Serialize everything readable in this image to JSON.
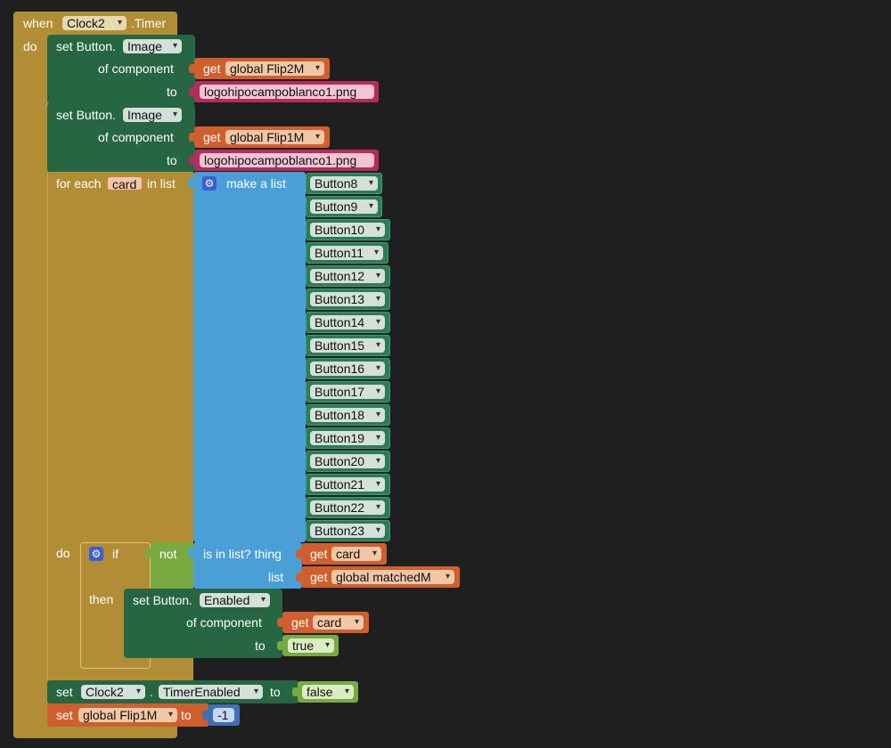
{
  "event": {
    "when": "when",
    "component": "Clock2",
    "event_name": ".Timer",
    "do": "do"
  },
  "set1": {
    "set": "set Button.",
    "property": "Image",
    "of_component": "of component",
    "to": "to",
    "get": "get",
    "var": "global Flip2M",
    "text": "logohipocampoblanco1.png"
  },
  "set2": {
    "set": "set Button.",
    "property": "Image",
    "of_component": "of component",
    "to": "to",
    "get": "get",
    "var": "global Flip1M",
    "text": "logohipocampoblanco1.png"
  },
  "foreach": {
    "label": "for each",
    "var": "card",
    "in_list": "in list",
    "make_list": "make a list",
    "do": "do"
  },
  "buttons": [
    "Button8",
    "Button9",
    "Button10",
    "Button11",
    "Button12",
    "Button13",
    "Button14",
    "Button15",
    "Button16",
    "Button17",
    "Button18",
    "Button19",
    "Button20",
    "Button21",
    "Button22",
    "Button23"
  ],
  "ifblock": {
    "if": "if",
    "not": "not",
    "is_in_list": "is in list? thing",
    "list": "list",
    "get": "get",
    "thing_var": "card",
    "list_var": "global matchedM",
    "then": "then"
  },
  "set3": {
    "set": "set Button.",
    "property": "Enabled",
    "of_component": "of component",
    "to": "to",
    "get": "get",
    "var": "card",
    "value": "true"
  },
  "set4": {
    "set": "set",
    "component": "Clock2",
    "dot": ".",
    "property": "TimerEnabled",
    "to": "to",
    "value": "false"
  },
  "set5": {
    "set": "set",
    "var": "global Flip1M",
    "to": "to",
    "value": "-1"
  }
}
